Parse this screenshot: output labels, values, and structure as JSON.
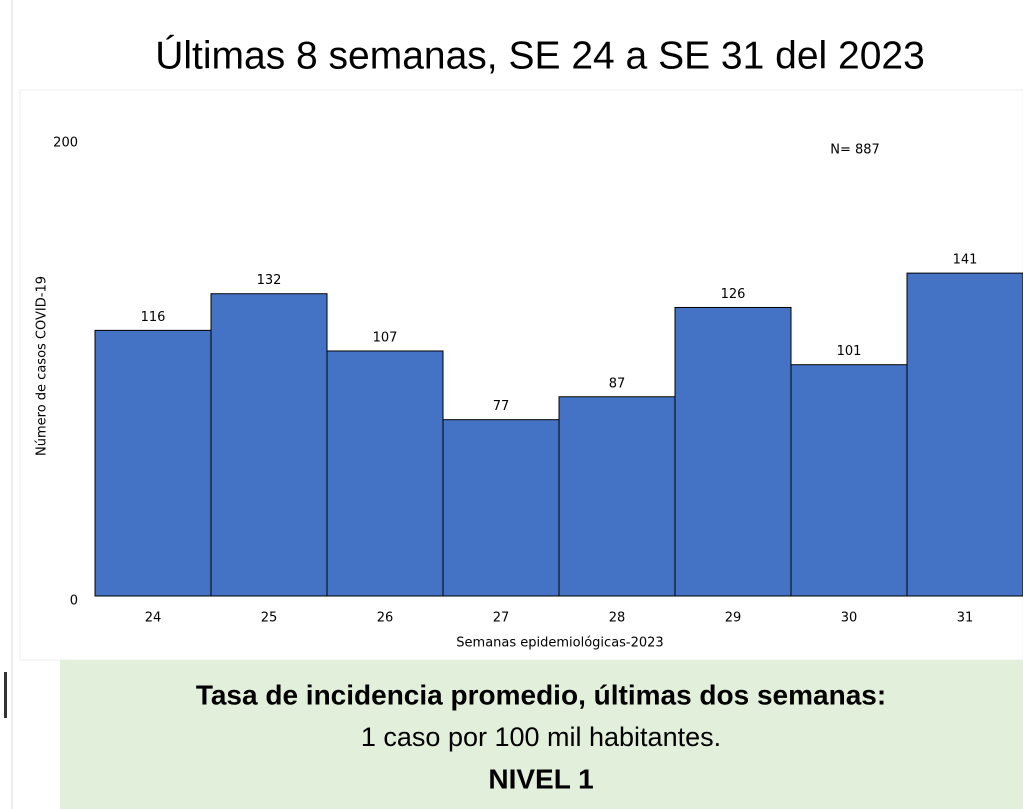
{
  "chart_data": {
    "type": "bar",
    "title": "Últimas 8 semanas, SE 24 a SE 31 del 2023",
    "annotation": "N= 887",
    "x_label": "Semanas epidemiológicas-2023",
    "y_label": "Número de casos COVID-19",
    "categories": [
      "24",
      "25",
      "26",
      "27",
      "28",
      "29",
      "30",
      "31"
    ],
    "values": [
      116,
      132,
      107,
      77,
      87,
      126,
      101,
      141
    ],
    "color": "#4472c4",
    "ylim": [
      0,
      200
    ],
    "yticks": [
      0,
      200
    ],
    "grid": false
  },
  "footer": {
    "line1": "Tasa de incidencia promedio, últimas dos semanas:",
    "line2": "1 caso por 100 mil habitantes.",
    "line3": "NIVEL 1"
  }
}
